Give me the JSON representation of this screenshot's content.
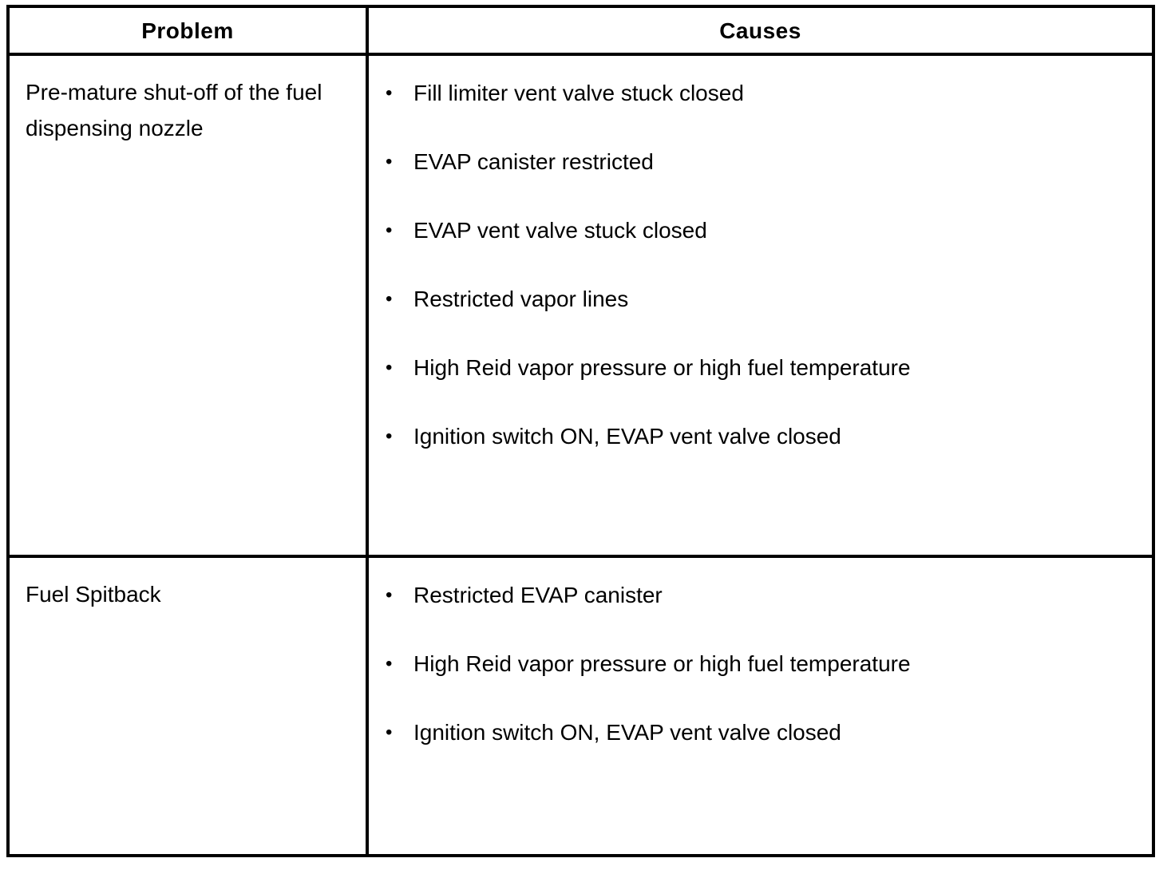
{
  "table": {
    "bullet": "•",
    "headers": {
      "problem": "Problem",
      "causes": "Causes"
    },
    "rows": [
      {
        "problem": "Pre-mature shut-off of the fuel dispensing nozzle",
        "causes": [
          "Fill limiter vent valve stuck closed",
          "EVAP canister restricted",
          "EVAP vent valve stuck closed",
          "Restricted vapor lines",
          "High Reid vapor pressure or high fuel temperature",
          "Ignition switch ON, EVAP vent valve closed"
        ]
      },
      {
        "problem": "Fuel Spitback",
        "causes": [
          "Restricted EVAP canister",
          "High Reid vapor pressure or high fuel temperature",
          "Ignition switch ON, EVAP vent valve closed"
        ]
      }
    ],
    "colors": {
      "border": "#000000",
      "text": "#000000",
      "background": "#ffffff"
    }
  }
}
